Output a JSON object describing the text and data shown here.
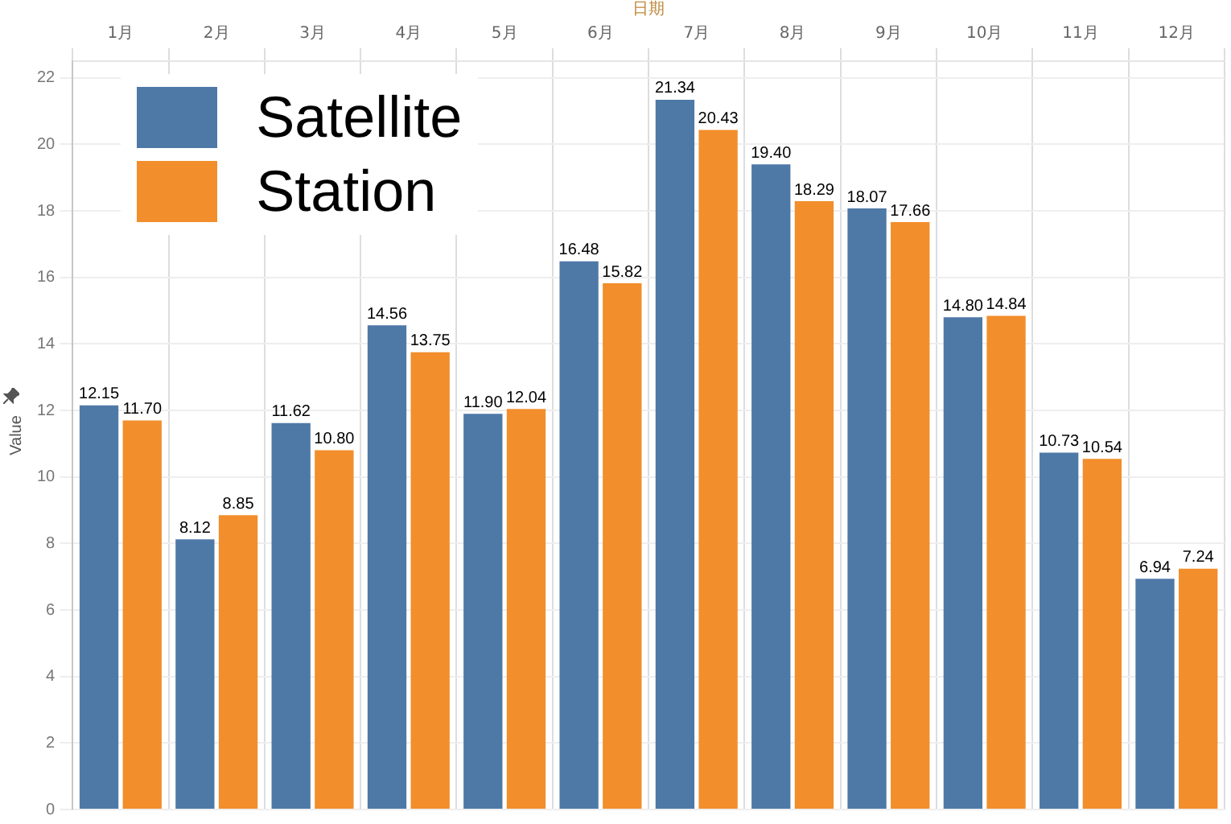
{
  "chart_data": {
    "type": "bar",
    "xlabel": "日期",
    "ylabel": "Value",
    "categories": [
      "1月",
      "2月",
      "3月",
      "4月",
      "5月",
      "6月",
      "7月",
      "8月",
      "9月",
      "10月",
      "11月",
      "12月"
    ],
    "series": [
      {
        "name": "Satellite",
        "color": "#4e79a7",
        "values": [
          12.15,
          8.12,
          11.62,
          14.56,
          11.9,
          16.48,
          21.34,
          19.4,
          18.07,
          14.8,
          10.73,
          6.94
        ],
        "value_labels": [
          "12.15",
          "8.12",
          "11.62",
          "14.56",
          "11.90",
          "16.48",
          "21.34",
          "19.40",
          "18.07",
          "14.80",
          "10.73",
          "6.94"
        ]
      },
      {
        "name": "Station",
        "color": "#f28e2b",
        "values": [
          11.7,
          8.85,
          10.8,
          13.75,
          12.04,
          15.82,
          20.43,
          18.29,
          17.66,
          14.84,
          10.54,
          7.24
        ],
        "value_labels": [
          "11.70",
          "8.85",
          "10.80",
          "13.75",
          "12.04",
          "15.82",
          "20.43",
          "18.29",
          "17.66",
          "14.84",
          "10.54",
          "7.24"
        ]
      }
    ],
    "ylim": [
      0,
      22.5
    ],
    "yticks": [
      0,
      2,
      4,
      6,
      8,
      10,
      12,
      14,
      16,
      18,
      20,
      22
    ],
    "grid": true,
    "legend": "top left"
  }
}
